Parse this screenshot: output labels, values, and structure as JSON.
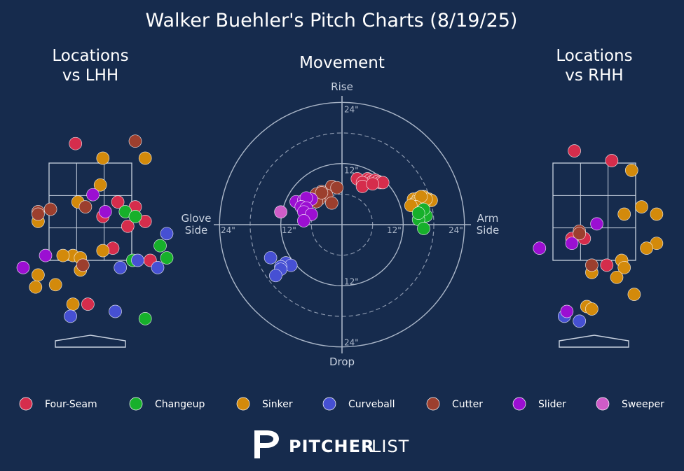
{
  "chart_data": {
    "type": "scatter",
    "title": "Walker Buehler's Pitch Charts (8/19/25)",
    "brand": {
      "bold": "PITCHER",
      "light": "LIST"
    },
    "pitch_types": [
      {
        "name": "Four-Seam",
        "color": "#d52d4c"
      },
      {
        "name": "Changeup",
        "color": "#17b02b"
      },
      {
        "name": "Sinker",
        "color": "#d38a0b"
      },
      {
        "name": "Curveball",
        "color": "#4650d3"
      },
      {
        "name": "Cutter",
        "color": "#9c3f2e"
      },
      {
        "name": "Slider",
        "color": "#9b0fd2"
      },
      {
        "name": "Sweeper",
        "color": "#cf5cc8"
      }
    ],
    "movement": {
      "title": "Movement",
      "labels": {
        "top": "Rise",
        "bottom": "Drop",
        "left": "Glove\nSide",
        "right": "Arm\nSide"
      },
      "ring_labels": [
        "12\"",
        "24\""
      ],
      "unit": "inches",
      "points": [
        {
          "type": "Four-Seam",
          "x": 6,
          "y": 18
        },
        {
          "type": "Four-Seam",
          "x": 10,
          "y": 18
        },
        {
          "type": "Four-Seam",
          "x": 11,
          "y": 17.5
        },
        {
          "type": "Four-Seam",
          "x": 12,
          "y": 17
        },
        {
          "type": "Four-Seam",
          "x": 13,
          "y": 17.5
        },
        {
          "type": "Four-Seam",
          "x": 14,
          "y": 17
        },
        {
          "type": "Four-Seam",
          "x": 15,
          "y": 16.5
        },
        {
          "type": "Four-Seam",
          "x": 16,
          "y": 16.5
        },
        {
          "type": "Four-Seam",
          "x": 8,
          "y": 16.5
        },
        {
          "type": "Four-Seam",
          "x": 8,
          "y": 15
        },
        {
          "type": "Four-Seam",
          "x": 12,
          "y": 16
        },
        {
          "type": "Sinker",
          "x": 28,
          "y": 10
        },
        {
          "type": "Sinker",
          "x": 30,
          "y": 10.5
        },
        {
          "type": "Sinker",
          "x": 32,
          "y": 11
        },
        {
          "type": "Sinker",
          "x": 34,
          "y": 10
        },
        {
          "type": "Sinker",
          "x": 35,
          "y": 9.5
        },
        {
          "type": "Sinker",
          "x": 29,
          "y": 9
        },
        {
          "type": "Sinker",
          "x": 31,
          "y": 8.5
        },
        {
          "type": "Sinker",
          "x": 28,
          "y": 8
        },
        {
          "type": "Sinker",
          "x": 30,
          "y": 7.5
        },
        {
          "type": "Sinker",
          "x": 32,
          "y": 8
        },
        {
          "type": "Sinker",
          "x": 33,
          "y": 10
        },
        {
          "type": "Sinker",
          "x": 31,
          "y": 11
        },
        {
          "type": "Sinker",
          "x": 29,
          "y": 7
        },
        {
          "type": "Sinker",
          "x": 27,
          "y": 7.5
        },
        {
          "type": "Changeup",
          "x": 31,
          "y": 5
        },
        {
          "type": "Changeup",
          "x": 33,
          "y": 3.5
        },
        {
          "type": "Changeup",
          "x": 30,
          "y": 2
        },
        {
          "type": "Changeup",
          "x": 32,
          "y": 6
        },
        {
          "type": "Changeup",
          "x": 32,
          "y": -1.5
        },
        {
          "type": "Changeup",
          "x": 30,
          "y": 4.5
        },
        {
          "type": "Cutter",
          "x": -4,
          "y": 15
        },
        {
          "type": "Cutter",
          "x": -2,
          "y": 14.5
        },
        {
          "type": "Cutter",
          "x": -8,
          "y": 13
        },
        {
          "type": "Cutter",
          "x": -10,
          "y": 12
        },
        {
          "type": "Cutter",
          "x": -6,
          "y": 11.5
        },
        {
          "type": "Cutter",
          "x": -9,
          "y": 10
        },
        {
          "type": "Cutter",
          "x": -10,
          "y": 9
        },
        {
          "type": "Cutter",
          "x": -4,
          "y": 8.5
        },
        {
          "type": "Cutter",
          "x": -8,
          "y": 12.5
        },
        {
          "type": "Slider",
          "x": -18,
          "y": 9
        },
        {
          "type": "Slider",
          "x": -15,
          "y": 9.5
        },
        {
          "type": "Slider",
          "x": -12,
          "y": 10
        },
        {
          "type": "Slider",
          "x": -14,
          "y": 10.5
        },
        {
          "type": "Slider",
          "x": -16,
          "y": 7
        },
        {
          "type": "Slider",
          "x": -14,
          "y": 6.5
        },
        {
          "type": "Slider",
          "x": -15,
          "y": 5
        },
        {
          "type": "Slider",
          "x": -12,
          "y": 4
        },
        {
          "type": "Slider",
          "x": -15,
          "y": 1.5
        },
        {
          "type": "Sweeper",
          "x": -24,
          "y": 5
        },
        {
          "type": "Curveball",
          "x": -28,
          "y": -13
        },
        {
          "type": "Curveball",
          "x": -22,
          "y": -15
        },
        {
          "type": "Curveball",
          "x": -20,
          "y": -16
        },
        {
          "type": "Curveball",
          "x": -24,
          "y": -16.5
        },
        {
          "type": "Curveball",
          "x": -24,
          "y": -17.5
        },
        {
          "type": "Curveball",
          "x": -26,
          "y": -20
        }
      ]
    },
    "locations_lhh": {
      "title": "Locations\nvs LHH",
      "unit": "feet",
      "points": [
        {
          "type": "Four-Seam",
          "x": -0.3,
          "y": 3.9
        },
        {
          "type": "Four-Seam",
          "x": 0.25,
          "y": 2.4
        },
        {
          "type": "Four-Seam",
          "x": 0.55,
          "y": 2.7
        },
        {
          "type": "Four-Seam",
          "x": 0.75,
          "y": 2.2
        },
        {
          "type": "Four-Seam",
          "x": 0.9,
          "y": 2.6
        },
        {
          "type": "Four-Seam",
          "x": 1.1,
          "y": 2.3
        },
        {
          "type": "Four-Seam",
          "x": 1.2,
          "y": 1.5
        },
        {
          "type": "Four-Seam",
          "x": 0.45,
          "y": 1.75
        },
        {
          "type": "Four-Seam",
          "x": -0.05,
          "y": 0.6
        },
        {
          "type": "Changeup",
          "x": 0.7,
          "y": 2.5
        },
        {
          "type": "Changeup",
          "x": 0.9,
          "y": 2.4
        },
        {
          "type": "Changeup",
          "x": 1.4,
          "y": 1.8
        },
        {
          "type": "Changeup",
          "x": 2.0,
          "y": 1.55
        },
        {
          "type": "Changeup",
          "x": 0.85,
          "y": 1.5
        },
        {
          "type": "Changeup",
          "x": 1.1,
          "y": 0.3
        },
        {
          "type": "Sinker",
          "x": 0.25,
          "y": 3.6
        },
        {
          "type": "Sinker",
          "x": 1.1,
          "y": 3.6
        },
        {
          "type": "Sinker",
          "x": 0.2,
          "y": 3.05
        },
        {
          "type": "Sinker",
          "x": -0.25,
          "y": 2.7
        },
        {
          "type": "Sinker",
          "x": -1.05,
          "y": 2.3
        },
        {
          "type": "Sinker",
          "x": -1.05,
          "y": 1.2
        },
        {
          "type": "Sinker",
          "x": -1.1,
          "y": 0.95
        },
        {
          "type": "Sinker",
          "x": -0.35,
          "y": 1.6
        },
        {
          "type": "Sinker",
          "x": -0.2,
          "y": 1.55
        },
        {
          "type": "Sinker",
          "x": -0.2,
          "y": 1.3
        },
        {
          "type": "Sinker",
          "x": 0.25,
          "y": 1.7
        },
        {
          "type": "Sinker",
          "x": -0.7,
          "y": 1.0
        },
        {
          "type": "Sinker",
          "x": -0.55,
          "y": 1.6
        },
        {
          "type": "Sinker",
          "x": -0.35,
          "y": 0.6
        },
        {
          "type": "Curveball",
          "x": 0.6,
          "y": 1.35
        },
        {
          "type": "Curveball",
          "x": 0.95,
          "y": 1.5
        },
        {
          "type": "Curveball",
          "x": 1.35,
          "y": 1.35
        },
        {
          "type": "Curveball",
          "x": 1.6,
          "y": 2.05
        },
        {
          "type": "Curveball",
          "x": 0.5,
          "y": 0.45
        },
        {
          "type": "Curveball",
          "x": -0.4,
          "y": 0.35
        },
        {
          "type": "Cutter",
          "x": 0.9,
          "y": 3.95
        },
        {
          "type": "Cutter",
          "x": -0.8,
          "y": 2.55
        },
        {
          "type": "Cutter",
          "x": -1.05,
          "y": 2.5
        },
        {
          "type": "Cutter",
          "x": -1.05,
          "y": 2.45
        },
        {
          "type": "Cutter",
          "x": -0.1,
          "y": 2.6
        },
        {
          "type": "Cutter",
          "x": -0.15,
          "y": 1.4
        },
        {
          "type": "Slider",
          "x": 0.05,
          "y": 2.85
        },
        {
          "type": "Slider",
          "x": 0.3,
          "y": 2.5
        },
        {
          "type": "Slider",
          "x": -0.9,
          "y": 1.6
        },
        {
          "type": "Slider",
          "x": -1.35,
          "y": 1.35
        }
      ]
    },
    "locations_rhh": {
      "title": "Locations\nvs RHH",
      "unit": "feet",
      "points": [
        {
          "type": "Four-Seam",
          "x": -0.4,
          "y": 3.75
        },
        {
          "type": "Four-Seam",
          "x": 0.35,
          "y": 3.55
        },
        {
          "type": "Four-Seam",
          "x": -0.2,
          "y": 1.95
        },
        {
          "type": "Four-Seam",
          "x": -0.45,
          "y": 1.95
        },
        {
          "type": "Four-Seam",
          "x": 0.25,
          "y": 1.4
        },
        {
          "type": "Sinker",
          "x": 0.75,
          "y": 3.35
        },
        {
          "type": "Sinker",
          "x": 0.6,
          "y": 2.45
        },
        {
          "type": "Sinker",
          "x": 0.95,
          "y": 2.6
        },
        {
          "type": "Sinker",
          "x": 1.25,
          "y": 2.45
        },
        {
          "type": "Sinker",
          "x": 1.25,
          "y": 1.85
        },
        {
          "type": "Sinker",
          "x": 1.05,
          "y": 1.75
        },
        {
          "type": "Sinker",
          "x": 0.55,
          "y": 1.5
        },
        {
          "type": "Sinker",
          "x": 0.6,
          "y": 1.35
        },
        {
          "type": "Sinker",
          "x": 0.45,
          "y": 1.15
        },
        {
          "type": "Sinker",
          "x": -0.05,
          "y": 1.25
        },
        {
          "type": "Sinker",
          "x": -0.15,
          "y": 0.55
        },
        {
          "type": "Sinker",
          "x": -0.05,
          "y": 0.5
        },
        {
          "type": "Sinker",
          "x": 0.8,
          "y": 0.8
        },
        {
          "type": "Curveball",
          "x": -0.3,
          "y": 0.25
        },
        {
          "type": "Curveball",
          "x": -0.6,
          "y": 0.35
        },
        {
          "type": "Cutter",
          "x": -0.3,
          "y": 2.1
        },
        {
          "type": "Cutter",
          "x": -0.3,
          "y": 2.05
        },
        {
          "type": "Cutter",
          "x": -0.05,
          "y": 1.4
        },
        {
          "type": "Slider",
          "x": 0.05,
          "y": 2.25
        },
        {
          "type": "Slider",
          "x": -0.45,
          "y": 1.85
        },
        {
          "type": "Slider",
          "x": -1.1,
          "y": 1.75
        },
        {
          "type": "Slider",
          "x": -0.55,
          "y": 0.45
        }
      ]
    }
  }
}
